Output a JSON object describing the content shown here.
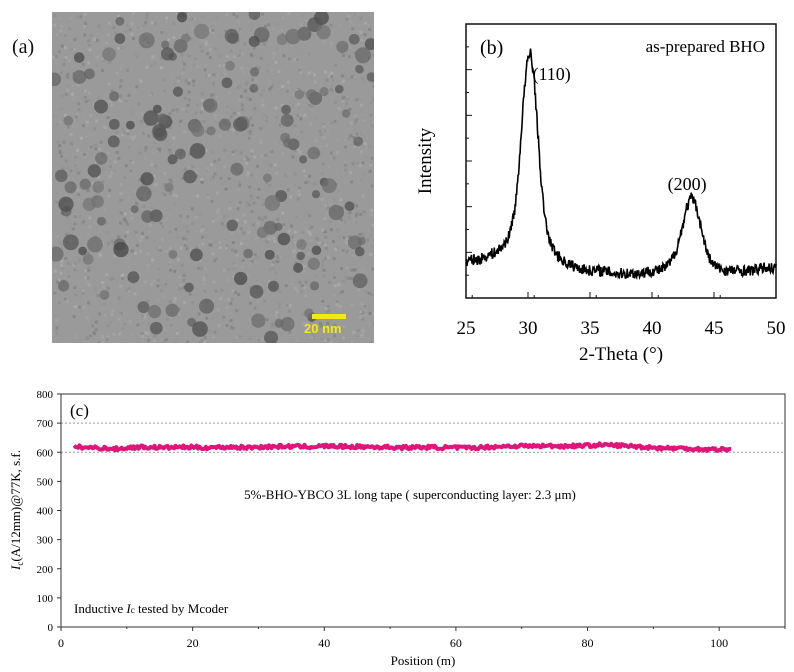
{
  "panel_a": {
    "label": "(a)",
    "scale_bar_label": "20 nm",
    "scale_bar_color": "#f5e61a"
  },
  "chart_data": [
    {
      "type": "line",
      "panel_label": "(b)",
      "annotation": "as-prepared BHO",
      "xlabel": "2-Theta (°)",
      "ylabel": "Intensity",
      "xlim": [
        25,
        50
      ],
      "ylim": [
        0,
        100
      ],
      "y_units": "arbitrary (no tick labels)",
      "x_ticks": [
        "25",
        "30",
        "35",
        "40",
        "45",
        "50"
      ],
      "peak_labels": [
        {
          "text": "(110)",
          "x": 30.2
        },
        {
          "text": "(200)",
          "x": 43.2
        }
      ],
      "x": [
        25,
        25.5,
        26,
        26.5,
        27,
        27.5,
        28,
        28.5,
        29,
        29.3,
        29.6,
        29.9,
        30.2,
        30.5,
        30.8,
        31.1,
        31.4,
        31.8,
        32.3,
        33,
        34,
        35,
        36,
        37,
        38,
        39,
        40,
        40.5,
        41,
        41.5,
        42,
        42.4,
        42.8,
        43.2,
        43.6,
        44,
        44.4,
        44.8,
        45.3,
        46,
        47,
        48,
        49,
        50
      ],
      "y": [
        13,
        14,
        14,
        15,
        16,
        17,
        19,
        23,
        34,
        50,
        70,
        85,
        90,
        80,
        60,
        40,
        28,
        20,
        16,
        13,
        11,
        10,
        10,
        9,
        9,
        9,
        10,
        10,
        11,
        13,
        18,
        25,
        33,
        37,
        33,
        25,
        17,
        13,
        11,
        10,
        10,
        10,
        11,
        11
      ],
      "line_color": "#000000"
    },
    {
      "type": "line",
      "panel_label": "(c)",
      "annotation": "5%-BHO-YBCO 3L long tape ( superconducting layer: 2.3 μm)",
      "note_parts": [
        "Inductive ",
        "I",
        "c",
        " tested by Mcoder"
      ],
      "xlabel": "Position (m)",
      "ylabel_parts": [
        "I",
        "c",
        "(A/12mm)@77K, s.f."
      ],
      "xlim": [
        0,
        110
      ],
      "ylim": [
        0,
        800
      ],
      "x_ticks": [
        "0",
        "20",
        "40",
        "60",
        "80",
        "100"
      ],
      "y_ticks": [
        "0",
        "100",
        "200",
        "300",
        "400",
        "500",
        "600",
        "700",
        "800"
      ],
      "reference_lines": [
        600,
        700
      ],
      "x": [
        2,
        4,
        6,
        8,
        10,
        12,
        14,
        16,
        18,
        20,
        22,
        24,
        26,
        28,
        30,
        32,
        34,
        36,
        38,
        40,
        42,
        44,
        46,
        48,
        50,
        52,
        54,
        56,
        58,
        60,
        62,
        64,
        66,
        68,
        70,
        72,
        74,
        76,
        78,
        80,
        82,
        84,
        86,
        88,
        90,
        92,
        94,
        96,
        98,
        100,
        102
      ],
      "y": [
        619,
        616,
        615,
        611,
        615,
        618,
        617,
        616,
        618,
        617,
        616,
        617,
        618,
        616,
        618,
        619,
        620,
        620,
        619,
        621,
        620,
        619,
        619,
        618,
        617,
        616,
        617,
        617,
        616,
        616,
        615,
        617,
        619,
        621,
        622,
        621,
        622,
        621,
        622,
        623,
        625,
        624,
        622,
        619,
        616,
        614,
        614,
        612,
        610,
        610,
        610
      ],
      "line_color": "#e0157a"
    }
  ]
}
